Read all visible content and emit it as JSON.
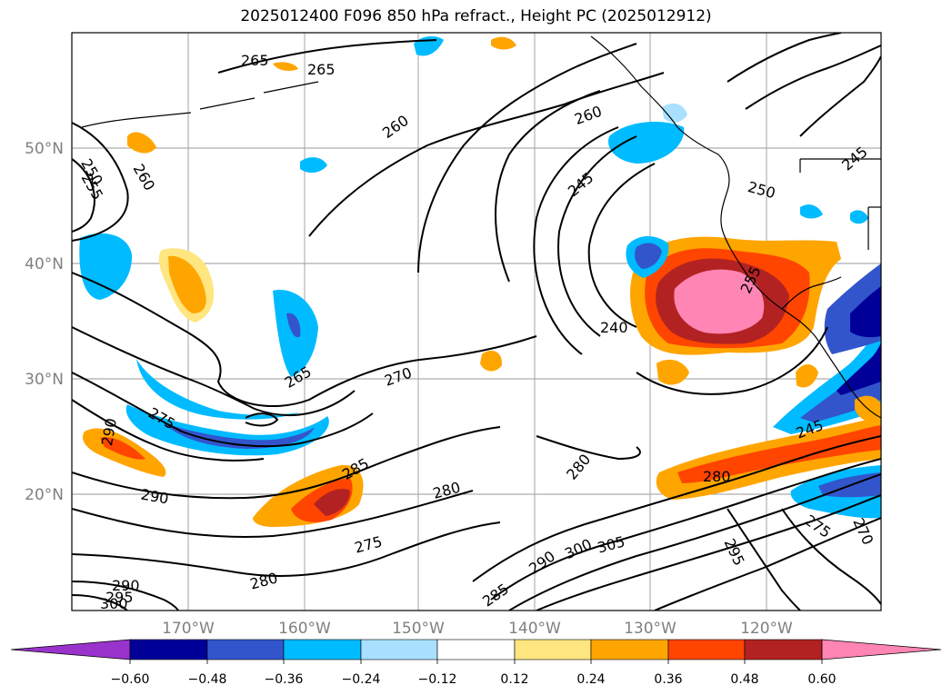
{
  "title": "2025012400 F096 850 hPa refract., Height PC (2025012912)",
  "map": {
    "lon_labels": [
      "170°W",
      "160°W",
      "150°W",
      "140°W",
      "130°W",
      "120°W"
    ],
    "lat_labels": [
      "50°N",
      "40°N",
      "30°N",
      "20°N"
    ],
    "contour_labels": [
      "265",
      "265",
      "260",
      "255",
      "250",
      "260",
      "245",
      "260",
      "245",
      "250",
      "255",
      "240",
      "265",
      "270",
      "275",
      "290",
      "285",
      "290",
      "280",
      "280",
      "275",
      "280",
      "290",
      "295",
      "300",
      "285",
      "290",
      "300",
      "305",
      "295",
      "275",
      "270",
      "245",
      "280"
    ]
  },
  "colorbar": {
    "ticks": [
      "−0.60",
      "−0.48",
      "−0.36",
      "−0.24",
      "−0.12",
      "0.12",
      "0.24",
      "0.36",
      "0.48",
      "0.60"
    ],
    "colors": {
      "under": "#9933cc",
      "neg_060": "#000099",
      "neg_048": "#3355cc",
      "neg_036": "#00bbff",
      "neg_024": "#aae0ff",
      "zero": "#ffffff",
      "pos_012": "#ffe680",
      "pos_024": "#ffa500",
      "pos_036": "#ff4500",
      "pos_048": "#b22222",
      "over": "#ff85b4"
    }
  }
}
